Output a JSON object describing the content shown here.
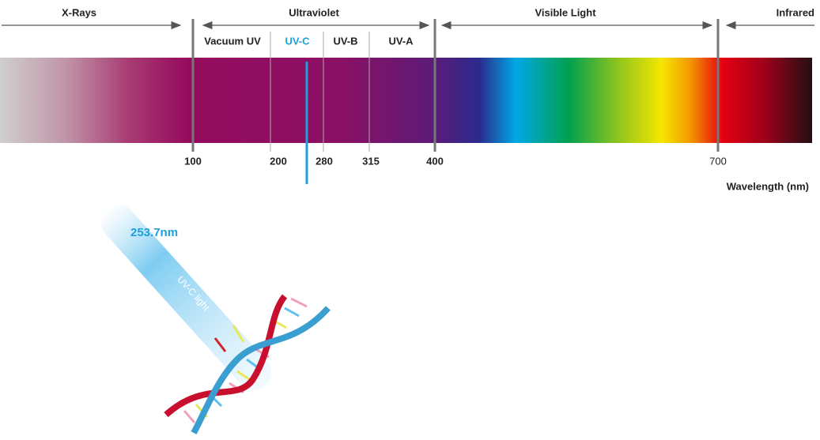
{
  "ranges": [
    {
      "label": "X-Rays"
    },
    {
      "label": "Ultraviolet"
    },
    {
      "label": "Visible Light"
    },
    {
      "label": "Infrared"
    }
  ],
  "uv_bands": [
    {
      "label": "Vacuum UV"
    },
    {
      "label": "UV-C"
    },
    {
      "label": "UV-B"
    },
    {
      "label": "UV-A"
    }
  ],
  "ticks": [
    100,
    200,
    280,
    315,
    400,
    700
  ],
  "axis_label": "Wavelength (nm)",
  "marker": {
    "label": "253.7nm",
    "beam_label": "UV-C light"
  }
}
